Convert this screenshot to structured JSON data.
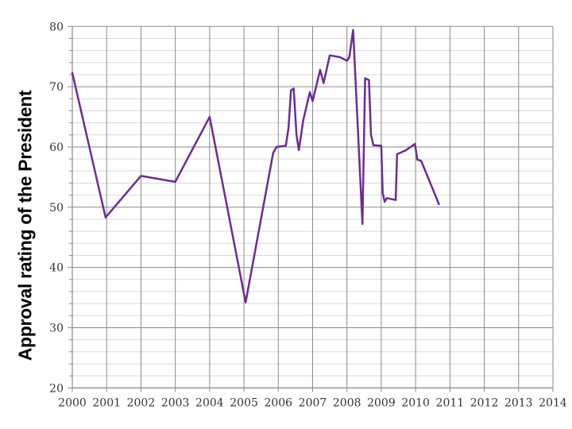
{
  "chart": {
    "background": "#ffffff",
    "line_color": "#6a2d96",
    "line_width": 2.5,
    "major_grid_color": "#8a8a8a",
    "minor_grid_color": "#d9d9d9",
    "axis_color": "#8a8a8a",
    "tick_text_color": "#333333",
    "title_color": "#000000"
  },
  "chart_data": {
    "type": "line",
    "title": "",
    "xlabel": "",
    "ylabel": "Approval rating of the President",
    "xlim": [
      2000,
      2014
    ],
    "ylim": [
      20,
      80
    ],
    "x_ticks": [
      2000,
      2001,
      2002,
      2003,
      2004,
      2005,
      2006,
      2007,
      2008,
      2009,
      2010,
      2011,
      2012,
      2013,
      2014
    ],
    "y_ticks": [
      20,
      30,
      40,
      50,
      60,
      70,
      80
    ],
    "y_minor_step": 2,
    "grid": "vertical-major, horizontal-major, horizontal-minor",
    "legend": "none",
    "series": [
      {
        "name": "Approval rating of the President",
        "points": [
          [
            2000.0,
            72.3
          ],
          [
            2000.97,
            48.3
          ],
          [
            2002.0,
            55.2
          ],
          [
            2003.0,
            54.2
          ],
          [
            2004.0,
            65.0
          ],
          [
            2005.05,
            34.2
          ],
          [
            2005.85,
            59.0
          ],
          [
            2005.95,
            60.0
          ],
          [
            2006.22,
            60.2
          ],
          [
            2006.3,
            63.2
          ],
          [
            2006.37,
            69.4
          ],
          [
            2006.45,
            69.7
          ],
          [
            2006.53,
            62.0
          ],
          [
            2006.6,
            59.5
          ],
          [
            2006.73,
            64.5
          ],
          [
            2006.92,
            69.1
          ],
          [
            2007.0,
            67.6
          ],
          [
            2007.22,
            72.8
          ],
          [
            2007.32,
            70.6
          ],
          [
            2007.5,
            75.2
          ],
          [
            2007.8,
            74.9
          ],
          [
            2008.0,
            74.3
          ],
          [
            2008.07,
            74.9
          ],
          [
            2008.18,
            79.4
          ],
          [
            2008.45,
            47.2
          ],
          [
            2008.53,
            71.4
          ],
          [
            2008.64,
            71.1
          ],
          [
            2008.7,
            62.0
          ],
          [
            2008.77,
            60.3
          ],
          [
            2009.0,
            60.2
          ],
          [
            2009.04,
            52.4
          ],
          [
            2009.1,
            50.9
          ],
          [
            2009.16,
            51.5
          ],
          [
            2009.42,
            51.2
          ],
          [
            2009.46,
            58.8
          ],
          [
            2009.7,
            59.4
          ],
          [
            2009.98,
            60.5
          ],
          [
            2010.05,
            57.9
          ],
          [
            2010.16,
            57.7
          ],
          [
            2010.68,
            50.5
          ]
        ]
      }
    ]
  }
}
